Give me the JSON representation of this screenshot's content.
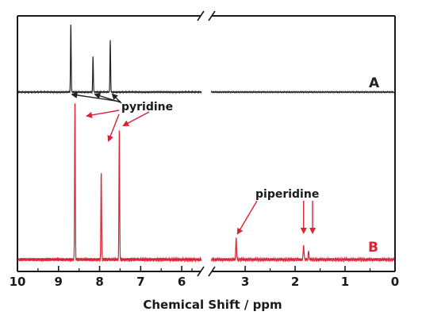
{
  "chart_data": {
    "type": "line",
    "title": "",
    "xlabel": "Chemical Shift / ppm",
    "ylabel": "",
    "xlim": [
      10,
      0
    ],
    "axis_break": [
      5.5,
      3.7
    ],
    "xticks": [
      "10",
      "9",
      "8",
      "7",
      "6",
      "3",
      "2",
      "1",
      "0"
    ],
    "colors": {
      "A": "#222222",
      "B": "#dd2233"
    },
    "series": [
      {
        "name": "A",
        "color": "#222222",
        "peaks": [
          {
            "x": 8.7,
            "height": 1.0
          },
          {
            "x": 8.16,
            "height": 0.52
          },
          {
            "x": 7.74,
            "height": 0.76
          }
        ]
      },
      {
        "name": "B",
        "color": "#dd2233",
        "peaks": [
          {
            "x": 8.6,
            "height": 1.0
          },
          {
            "x": 7.96,
            "height": 0.55
          },
          {
            "x": 7.52,
            "height": 0.82
          },
          {
            "x": 3.18,
            "height": 0.13
          },
          {
            "x": 1.83,
            "height": 0.09
          },
          {
            "x": 1.73,
            "height": 0.05
          }
        ]
      }
    ],
    "annotations": [
      {
        "text": "pyridine"
      },
      {
        "text": "piperidine"
      }
    ]
  }
}
